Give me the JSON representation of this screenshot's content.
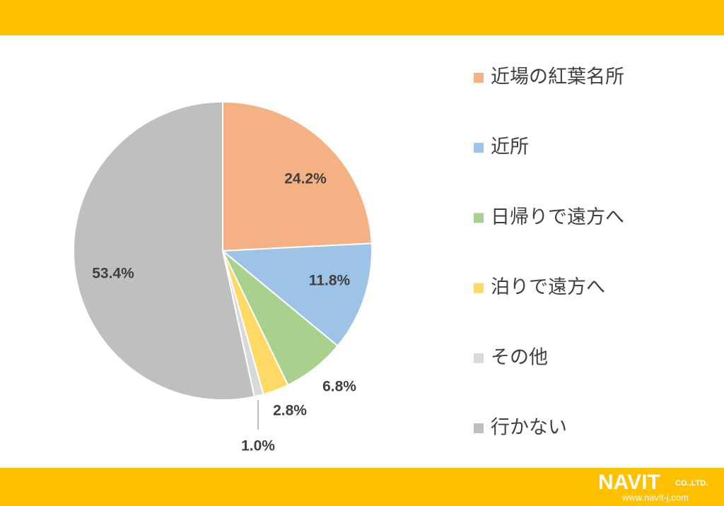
{
  "chart_data": {
    "type": "pie",
    "categories": [
      "近場の紅葉名所",
      "近所",
      "日帰りで遠方へ",
      "泊りで遠方へ",
      "その他",
      "行かない"
    ],
    "values": [
      24.2,
      11.8,
      6.8,
      2.8,
      1.0,
      53.4
    ],
    "value_labels": [
      "24.2%",
      "11.8%",
      "6.8%",
      "2.8%",
      "1.0%",
      "53.4%"
    ],
    "colors": [
      "#f4b183",
      "#9dc3e6",
      "#a9d18e",
      "#ffd966",
      "#d9d9d9",
      "#bfbfbf"
    ],
    "legend": "right"
  },
  "logo": {
    "name": "NAVIT",
    "suffix": "CO.,LTD.",
    "url": "www.navit-j.com"
  }
}
